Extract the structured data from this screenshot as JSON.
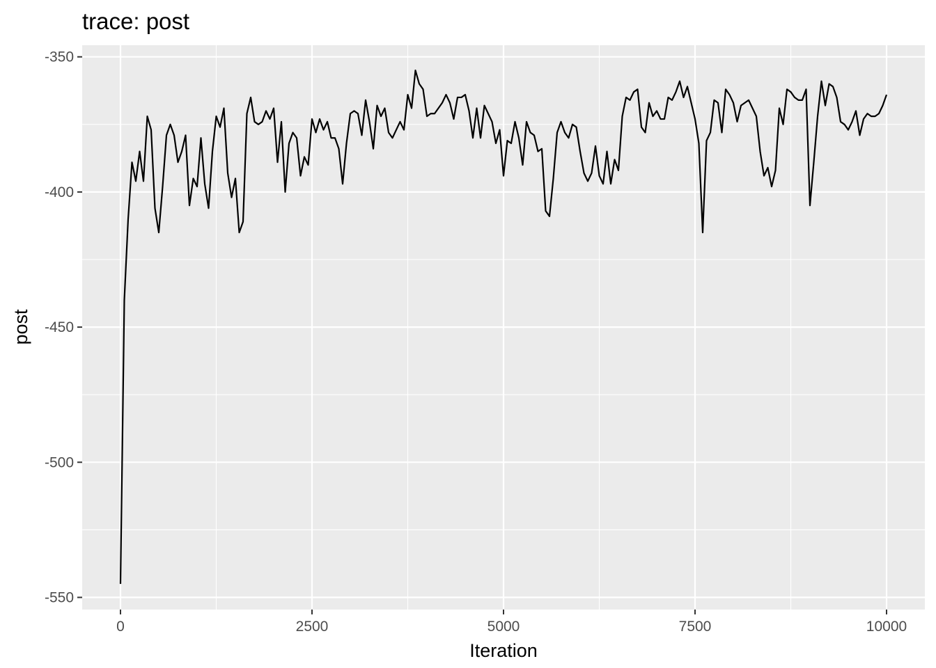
{
  "chart_data": {
    "type": "line",
    "title": "trace: post",
    "xlabel": "Iteration",
    "ylabel": "post",
    "xlim": [
      -500,
      10500
    ],
    "ylim": [
      -554.5,
      -345.7
    ],
    "x_ticks": [
      0,
      2500,
      5000,
      7500,
      10000
    ],
    "x_tick_labels": [
      "0",
      "2500",
      "5000",
      "7500",
      "10000"
    ],
    "y_ticks": [
      -350,
      -400,
      -450,
      -500,
      -550
    ],
    "y_tick_labels": [
      "-350",
      "-400",
      "-450",
      "-500",
      "-550"
    ],
    "x_minor": [
      1250,
      3750,
      6250,
      8750
    ],
    "y_minor": [
      -375,
      -425,
      -475,
      -525
    ],
    "grid": true,
    "colors": {
      "panel_background": "#EBEBEB",
      "grid": "#FFFFFF",
      "line": "#000000",
      "tick_label": "#4D4D4D"
    },
    "series": [
      {
        "x": [
          0,
          50,
          100,
          150,
          200,
          250,
          300,
          350,
          400,
          450,
          500,
          550,
          600,
          650,
          700,
          750,
          800,
          850,
          900,
          950,
          1000,
          1050,
          1100,
          1150,
          1200,
          1250,
          1300,
          1350,
          1400,
          1450,
          1500,
          1550,
          1600,
          1650,
          1700,
          1750,
          1800,
          1850,
          1900,
          1950,
          2000,
          2050,
          2100,
          2150,
          2200,
          2250,
          2300,
          2350,
          2400,
          2450,
          2500,
          2550,
          2600,
          2650,
          2700,
          2750,
          2800,
          2850,
          2900,
          2950,
          3000,
          3050,
          3100,
          3150,
          3200,
          3250,
          3300,
          3350,
          3400,
          3450,
          3500,
          3550,
          3600,
          3650,
          3700,
          3750,
          3800,
          3850,
          3900,
          3950,
          4000,
          4050,
          4100,
          4150,
          4200,
          4250,
          4300,
          4350,
          4400,
          4450,
          4500,
          4550,
          4600,
          4650,
          4700,
          4750,
          4800,
          4850,
          4900,
          4950,
          5000,
          5050,
          5100,
          5150,
          5200,
          5250,
          5300,
          5350,
          5400,
          5450,
          5500,
          5550,
          5600,
          5650,
          5700,
          5750,
          5800,
          5850,
          5900,
          5950,
          6000,
          6050,
          6100,
          6150,
          6200,
          6250,
          6300,
          6350,
          6400,
          6450,
          6500,
          6550,
          6600,
          6650,
          6700,
          6750,
          6800,
          6850,
          6900,
          6950,
          7000,
          7050,
          7100,
          7150,
          7200,
          7250,
          7300,
          7350,
          7400,
          7450,
          7500,
          7550,
          7600,
          7650,
          7700,
          7750,
          7800,
          7850,
          7900,
          7950,
          8000,
          8050,
          8100,
          8150,
          8200,
          8250,
          8300,
          8350,
          8400,
          8450,
          8500,
          8550,
          8600,
          8650,
          8700,
          8750,
          8800,
          8850,
          8900,
          8950,
          9000,
          9050,
          9100,
          9150,
          9200,
          9250,
          9300,
          9350,
          9400,
          9450,
          9500,
          9550,
          9600,
          9650,
          9700,
          9750,
          9800,
          9850,
          9900,
          9950,
          10000
        ],
        "y": [
          -545,
          -440,
          -410,
          -389,
          -396,
          -385,
          -396,
          -372,
          -377,
          -406,
          -415,
          -398,
          -379,
          -375,
          -379,
          -389,
          -385,
          -379,
          -405,
          -395,
          -398,
          -380,
          -397,
          -406,
          -385,
          -372,
          -376,
          -369,
          -393,
          -402,
          -395,
          -415,
          -411,
          -371,
          -365,
          -374,
          -375,
          -374,
          -370,
          -373,
          -369,
          -389,
          -374,
          -400,
          -382,
          -378,
          -380,
          -394,
          -387,
          -390,
          -373,
          -378,
          -373,
          -377,
          -374,
          -380,
          -380,
          -384,
          -397,
          -382,
          -371,
          -370,
          -371,
          -379,
          -366,
          -374,
          -384,
          -368,
          -372,
          -369,
          -378,
          -380,
          -377,
          -374,
          -377,
          -364,
          -369,
          -355,
          -360,
          -362,
          -372,
          -371,
          -371,
          -369,
          -367,
          -364,
          -367,
          -373,
          -365,
          -365,
          -364,
          -370,
          -380,
          -369,
          -380,
          -368,
          -371,
          -374,
          -382,
          -377,
          -394,
          -381,
          -382,
          -374,
          -380,
          -390,
          -374,
          -378,
          -379,
          -385,
          -384,
          -407,
          -409,
          -395,
          -378,
          -374,
          -378,
          -380,
          -375,
          -376,
          -385,
          -393,
          -396,
          -393,
          -383,
          -394,
          -397,
          -385,
          -397,
          -388,
          -392,
          -372,
          -365,
          -366,
          -363,
          -362,
          -376,
          -378,
          -367,
          -372,
          -370,
          -373,
          -373,
          -365,
          -366,
          -363,
          -359,
          -365,
          -361,
          -367,
          -373,
          -382,
          -415,
          -381,
          -378,
          -366,
          -367,
          -378,
          -362,
          -364,
          -367,
          -374,
          -368,
          -367,
          -366,
          -369,
          -372,
          -385,
          -394,
          -391,
          -398,
          -392,
          -369,
          -375,
          -362,
          -363,
          -365,
          -366,
          -366,
          -362,
          -405,
          -389,
          -372,
          -359,
          -368,
          -360,
          -361,
          -365,
          -374,
          -375,
          -377,
          -374,
          -370,
          -379,
          -373,
          -371,
          -372,
          -372,
          -371,
          -368,
          -364
        ]
      }
    ]
  }
}
